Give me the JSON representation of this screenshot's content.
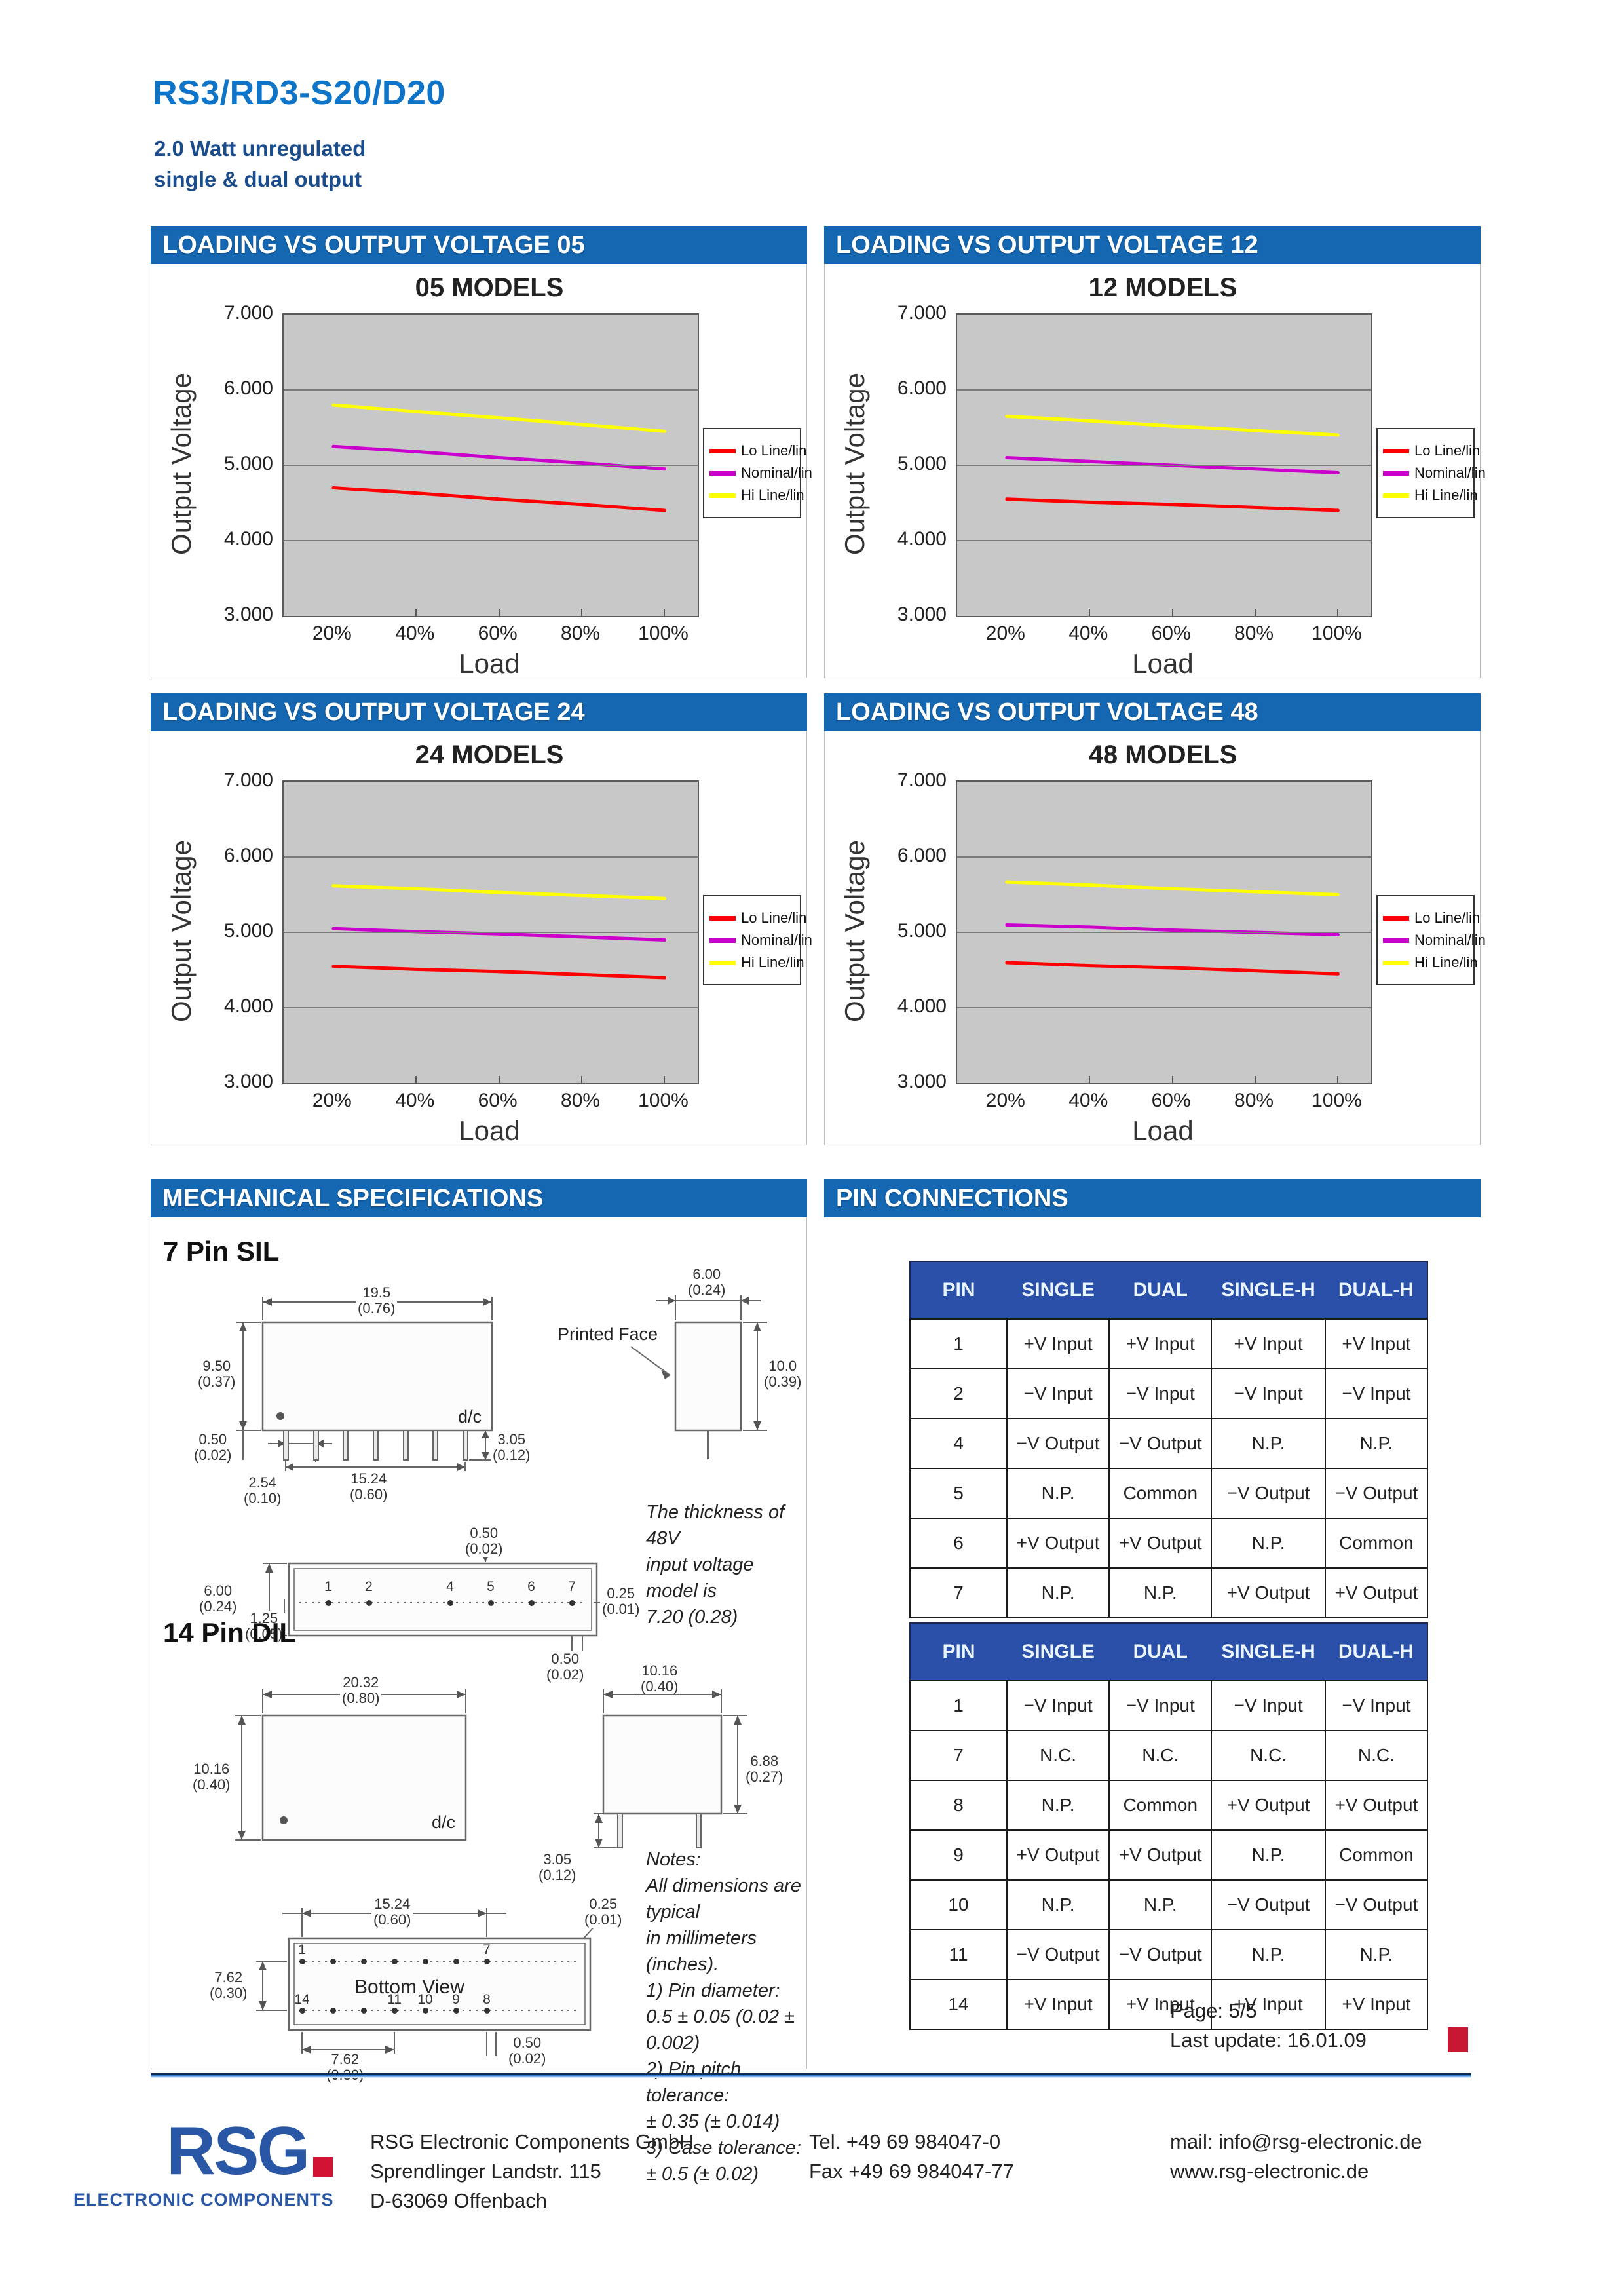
{
  "page": {
    "title": "RS3/RD3-S20/D20",
    "subtitle1": "2.0 Watt unregulated",
    "subtitle2": "single & dual output"
  },
  "sections": {
    "chart05": "LOADING VS OUTPUT VOLTAGE 05",
    "chart12": "LOADING VS OUTPUT VOLTAGE 12",
    "chart24": "LOADING VS OUTPUT VOLTAGE 24",
    "chart48": "LOADING VS OUTPUT VOLTAGE 48",
    "mech": "MECHANICAL SPECIFICATIONS",
    "pins": "PIN CONNECTIONS"
  },
  "chart_data": [
    {
      "type": "line",
      "title": "05 MODELS",
      "xlabel": "Load",
      "ylabel": "Output Voltage",
      "x_ticks": [
        "20%",
        "40%",
        "60%",
        "80%",
        "100%"
      ],
      "y_ticks": [
        "7.000",
        "6.000",
        "5.000",
        "4.000",
        "3.000"
      ],
      "ylim": [
        3,
        7
      ],
      "grid": true,
      "legend_position": "right",
      "x": [
        20,
        40,
        60,
        80,
        100
      ],
      "series": [
        {
          "name": "Lo Line/lin",
          "color": "#ff0000",
          "values": [
            4.7,
            4.63,
            4.55,
            4.48,
            4.4
          ]
        },
        {
          "name": "Nominal/lin",
          "color": "#cc00cc",
          "values": [
            5.25,
            5.18,
            5.1,
            5.03,
            4.95
          ]
        },
        {
          "name": "Hi Line/lin",
          "color": "#ffff00",
          "values": [
            5.8,
            5.71,
            5.63,
            5.54,
            5.45
          ]
        }
      ]
    },
    {
      "type": "line",
      "title": "12 MODELS",
      "xlabel": "Load",
      "ylabel": "Output Voltage",
      "x_ticks": [
        "20%",
        "40%",
        "60%",
        "80%",
        "100%"
      ],
      "y_ticks": [
        "7.000",
        "6.000",
        "5.000",
        "4.000",
        "3.000"
      ],
      "ylim": [
        3,
        7
      ],
      "grid": true,
      "legend_position": "right",
      "x": [
        20,
        40,
        60,
        80,
        100
      ],
      "series": [
        {
          "name": "Lo Line/lin",
          "color": "#ff0000",
          "values": [
            4.55,
            4.51,
            4.48,
            4.44,
            4.4
          ]
        },
        {
          "name": "Nominal/lin",
          "color": "#cc00cc",
          "values": [
            5.1,
            5.05,
            5.0,
            4.95,
            4.9
          ]
        },
        {
          "name": "Hi Line/lin",
          "color": "#ffff00",
          "values": [
            5.65,
            5.59,
            5.52,
            5.46,
            5.4
          ]
        }
      ]
    },
    {
      "type": "line",
      "title": "24 MODELS",
      "xlabel": "Load",
      "ylabel": "Output Voltage",
      "x_ticks": [
        "20%",
        "40%",
        "60%",
        "80%",
        "100%"
      ],
      "y_ticks": [
        "7.000",
        "6.000",
        "5.000",
        "4.000",
        "3.000"
      ],
      "ylim": [
        3,
        7
      ],
      "grid": true,
      "legend_position": "right",
      "x": [
        20,
        40,
        60,
        80,
        100
      ],
      "series": [
        {
          "name": "Lo Line/lin",
          "color": "#ff0000",
          "values": [
            4.55,
            4.51,
            4.48,
            4.44,
            4.4
          ]
        },
        {
          "name": "Nominal/lin",
          "color": "#cc00cc",
          "values": [
            5.05,
            5.01,
            4.98,
            4.94,
            4.9
          ]
        },
        {
          "name": "Hi Line/lin",
          "color": "#ffff00",
          "values": [
            5.62,
            5.58,
            5.53,
            5.49,
            5.45
          ]
        }
      ]
    },
    {
      "type": "line",
      "title": "48 MODELS",
      "xlabel": "Load",
      "ylabel": "Output Voltage",
      "x_ticks": [
        "20%",
        "40%",
        "60%",
        "80%",
        "100%"
      ],
      "y_ticks": [
        "7.000",
        "6.000",
        "5.000",
        "4.000",
        "3.000"
      ],
      "ylim": [
        3,
        7
      ],
      "grid": true,
      "legend_position": "right",
      "x": [
        20,
        40,
        60,
        80,
        100
      ],
      "series": [
        {
          "name": "Lo Line/lin",
          "color": "#ff0000",
          "values": [
            4.6,
            4.56,
            4.53,
            4.49,
            4.45
          ]
        },
        {
          "name": "Nominal/lin",
          "color": "#cc00cc",
          "values": [
            5.1,
            5.07,
            5.03,
            5.0,
            4.97
          ]
        },
        {
          "name": "Hi Line/lin",
          "color": "#ffff00",
          "values": [
            5.67,
            5.63,
            5.58,
            5.54,
            5.5
          ]
        }
      ]
    }
  ],
  "mech": {
    "sil_heading": "7 Pin SIL",
    "dil_heading": "14 Pin DIL",
    "printed_face": "Printed Face",
    "dc_label": "d/c",
    "bottom_view_label": "Bottom View",
    "thickness_note": [
      "The thickness of 48V",
      "input voltage model is",
      "7.20 (0.28)"
    ],
    "notes": [
      "Notes:",
      "All dimensions are typical",
      "in millimeters (inches).",
      "1)  Pin diameter:",
      "0.5 ± 0.05 (0.02 ± 0.002)",
      "2)  Pin pitch tolerance:",
      "± 0.35 (± 0.014)",
      "3)  Case tolerance:",
      "± 0.5 (± 0.02)"
    ],
    "dims": {
      "sil_width": {
        "mm": "19.5",
        "in": "(0.76)"
      },
      "sil_height": {
        "mm": "9.50",
        "in": "(0.37)"
      },
      "sil_standoff": {
        "mm": "0.50",
        "in": "(0.02)"
      },
      "sil_pitch": {
        "mm": "2.54",
        "in": "(0.10)"
      },
      "sil_span": {
        "mm": "15.24",
        "in": "(0.60)"
      },
      "sil_pinlen": {
        "mm": "3.05",
        "in": "(0.12)"
      },
      "sil_depth": {
        "mm": "6.00",
        "in": "(0.24)"
      },
      "sil_sideheight": {
        "mm": "10.0",
        "in": "(0.39)"
      },
      "silb_top": {
        "mm": "0.50",
        "in": "(0.02)"
      },
      "silb_depth": {
        "mm": "6.00",
        "in": "(0.24)"
      },
      "silb_rowoffset": {
        "mm": "1.25",
        "in": "(0.05)"
      },
      "silb_pindia": {
        "mm": "0.25",
        "in": "(0.01)"
      },
      "silb_bottom": {
        "mm": "0.50",
        "in": "(0.02)"
      },
      "dil_width": {
        "mm": "20.32",
        "in": "(0.80)"
      },
      "dil_height": {
        "mm": "10.16",
        "in": "(0.40)"
      },
      "dil_depth": {
        "mm": "10.16",
        "in": "(0.40)"
      },
      "dil_sideheight": {
        "mm": "6.88",
        "in": "(0.27)"
      },
      "dil_pinlen": {
        "mm": "3.05",
        "in": "(0.12)"
      },
      "dilb_span": {
        "mm": "15.24",
        "in": "(0.60)"
      },
      "dilb_pindia": {
        "mm": "0.25",
        "in": "(0.01)"
      },
      "dilb_rowpitch": {
        "mm": "7.62",
        "in": "(0.30)"
      },
      "dilb_pitch": {
        "mm": "7.62",
        "in": "(0.30)"
      },
      "dilb_offset": {
        "mm": "0.50",
        "in": "(0.02)"
      }
    },
    "silb_pins": [
      "1",
      "2",
      "4",
      "5",
      "6",
      "7"
    ],
    "dilb_pins_top": [
      "1",
      "7"
    ],
    "dilb_pins_bottom": [
      "14",
      "11",
      "10",
      "9",
      "8"
    ]
  },
  "pin_tables": [
    {
      "columns": [
        "PIN",
        "SINGLE",
        "DUAL",
        "SINGLE-H",
        "DUAL-H"
      ],
      "rows": [
        [
          "1",
          "+V Input",
          "+V Input",
          "+V Input",
          "+V Input"
        ],
        [
          "2",
          "−V Input",
          "−V Input",
          "−V Input",
          "−V Input"
        ],
        [
          "4",
          "−V Output",
          "−V Output",
          "N.P.",
          "N.P."
        ],
        [
          "5",
          "N.P.",
          "Common",
          "−V Output",
          "−V Output"
        ],
        [
          "6",
          "+V Output",
          "+V Output",
          "N.P.",
          "Common"
        ],
        [
          "7",
          "N.P.",
          "N.P.",
          "+V Output",
          "+V Output"
        ]
      ]
    },
    {
      "columns": [
        "PIN",
        "SINGLE",
        "DUAL",
        "SINGLE-H",
        "DUAL-H"
      ],
      "rows": [
        [
          "1",
          "−V Input",
          "−V Input",
          "−V Input",
          "−V Input"
        ],
        [
          "7",
          "N.C.",
          "N.C.",
          "N.C.",
          "N.C."
        ],
        [
          "8",
          "N.P.",
          "Common",
          "+V Output",
          "+V Output"
        ],
        [
          "9",
          "+V Output",
          "+V Output",
          "N.P.",
          "Common"
        ],
        [
          "10",
          "N.P.",
          "N.P.",
          "−V Output",
          "−V Output"
        ],
        [
          "11",
          "−V Output",
          "−V Output",
          "N.P.",
          "N.P."
        ],
        [
          "14",
          "+V Input",
          "+V Input",
          "+V Input",
          "+V Input"
        ]
      ]
    }
  ],
  "footer": {
    "page_label": "Page: 5/5",
    "update_label": "Last update: 16.01.09",
    "logo_text": "RSG",
    "logo_subtext": "ELECTRONIC COMPONENTS",
    "company": [
      "RSG Electronic Components GmbH",
      "Sprendlinger Landstr. 115",
      "D-63069 Offenbach"
    ],
    "phone": [
      "Tel. +49 69 984047-0",
      "Fax +49 69 984047-77"
    ],
    "web": [
      "mail: info@rsg-electronic.de",
      "www.rsg-electronic.de"
    ]
  }
}
